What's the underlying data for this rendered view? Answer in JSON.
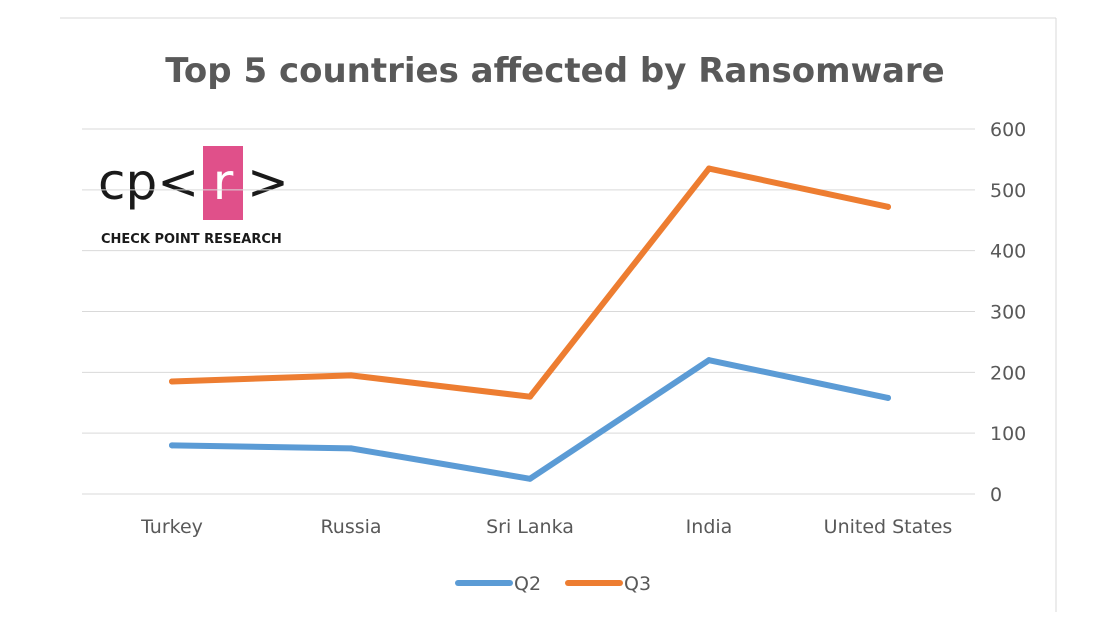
{
  "logo": {
    "left": "cp<",
    "letter": "r",
    "right": ">",
    "subtitle": "CHECK POINT RESEARCH",
    "accent_color": "#e0508a"
  },
  "chart_data": {
    "type": "line",
    "title": "Top 5 countries affected by Ransomware",
    "categories": [
      "Turkey",
      "Russia",
      "Sri Lanka",
      "India",
      "United States"
    ],
    "series": [
      {
        "name": "Q2",
        "color": "#5b9bd5",
        "values": [
          80,
          75,
          25,
          220,
          158
        ]
      },
      {
        "name": "Q3",
        "color": "#ed7d31",
        "values": [
          185,
          195,
          160,
          535,
          472
        ]
      }
    ],
    "ylim": [
      0,
      600
    ],
    "yticks": [
      0,
      100,
      200,
      300,
      400,
      500,
      600
    ],
    "y_axis_side": "right",
    "grid": true,
    "legend_position": "bottom"
  }
}
